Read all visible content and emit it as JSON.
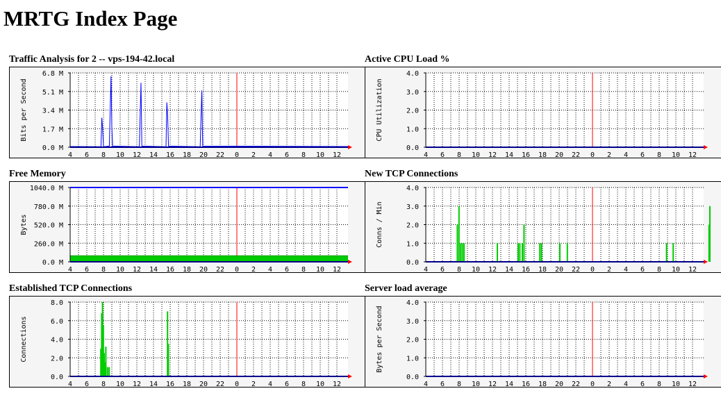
{
  "page": {
    "title": "MRTG Index Page"
  },
  "x_tick_labels": [
    "4",
    "6",
    "8",
    "10",
    "12",
    "14",
    "16",
    "18",
    "20",
    "22",
    "0",
    "2",
    "4",
    "6",
    "8",
    "10",
    "12"
  ],
  "colors": {
    "background": "#f5f5f5",
    "frame": "#000000",
    "axis": "#00008b",
    "in_series": "#00cc00",
    "out_series": "#0000ff",
    "now_line": "#ff0000",
    "grid": "#000000"
  },
  "graphs": [
    {
      "id": "traffic",
      "title": "Traffic Analysis for 2 -- vps-194-42.local",
      "ylabel": "Bits per Second",
      "y_tick_labels": [
        "0.0 M",
        "1.7 M",
        "3.4 M",
        "5.1 M",
        "6.8 M"
      ],
      "chart_data": {
        "type": "line",
        "ylim": [
          0,
          6.8
        ],
        "unit": "M",
        "series": [
          {
            "color": "out",
            "points": [
              [
                7.7,
                0.05
              ],
              [
                7.8,
                2.7
              ],
              [
                7.9,
                1.6
              ],
              [
                8.0,
                0.05
              ],
              [
                8.7,
                0.1
              ],
              [
                8.8,
                3.3
              ],
              [
                8.9,
                6.5
              ],
              [
                9.0,
                1.8
              ],
              [
                9.1,
                0.1
              ],
              [
                12.3,
                0.05
              ],
              [
                12.4,
                3.0
              ],
              [
                12.5,
                5.9
              ],
              [
                12.6,
                0.1
              ],
              [
                15.5,
                0.05
              ],
              [
                15.6,
                4.1
              ],
              [
                15.7,
                2.8
              ],
              [
                15.8,
                0.1
              ],
              [
                19.6,
                0.05
              ],
              [
                19.7,
                2.7
              ],
              [
                19.8,
                5.2
              ],
              [
                19.9,
                0.1
              ]
            ]
          }
        ]
      }
    },
    {
      "id": "cpu",
      "title": "Active CPU Load %",
      "ylabel": "CPU Utilization",
      "y_tick_labels": [
        "0.0",
        "1.0",
        "2.0",
        "3.0",
        "4.0"
      ],
      "chart_data": {
        "type": "line",
        "ylim": [
          0,
          4.0
        ],
        "series": []
      }
    },
    {
      "id": "memory",
      "title": "Free Memory",
      "ylabel": "Bytes",
      "y_tick_labels": [
        "0.0 M",
        "260.0 M",
        "520.0 M",
        "780.0 M",
        "1040.0 M"
      ],
      "chart_data": {
        "type": "area",
        "ylim": [
          0,
          1040
        ],
        "unit": "M",
        "fill_level": 85,
        "max_line": 1040
      }
    },
    {
      "id": "tcp-new",
      "title": "New TCP Connections",
      "ylabel": "Conns / Min",
      "y_tick_labels": [
        "0.0",
        "1.0",
        "2.0",
        "3.0",
        "4.0"
      ],
      "chart_data": {
        "type": "bar",
        "ylim": [
          0,
          4.0
        ],
        "bars": [
          [
            7.7,
            2.0
          ],
          [
            7.9,
            3.0
          ],
          [
            8.1,
            1.0
          ],
          [
            8.3,
            1.0
          ],
          [
            8.5,
            1.0
          ],
          [
            12.5,
            1.0
          ],
          [
            15.0,
            1.0
          ],
          [
            15.2,
            1.0
          ],
          [
            15.5,
            1.0
          ],
          [
            15.7,
            2.0
          ],
          [
            17.6,
            1.0
          ],
          [
            17.8,
            1.0
          ],
          [
            20.0,
            1.0
          ],
          [
            20.9,
            1.0
          ],
          [
            32.8,
            1.0
          ],
          [
            33.6,
            1.0
          ],
          [
            37.9,
            2.0
          ],
          [
            38.0,
            3.0
          ]
        ]
      }
    },
    {
      "id": "tcp-established",
      "title": "Established TCP Connections",
      "ylabel": "Connections",
      "y_tick_labels": [
        "0.0",
        "2.0",
        "4.0",
        "6.0",
        "8.0"
      ],
      "chart_data": {
        "type": "bar",
        "ylim": [
          0,
          8.0
        ],
        "bars": [
          [
            7.6,
            3.0
          ],
          [
            7.7,
            6.8
          ],
          [
            7.8,
            8.0
          ],
          [
            7.9,
            5.5
          ],
          [
            8.0,
            2.5
          ],
          [
            8.1,
            1.5
          ],
          [
            8.2,
            3.2
          ],
          [
            8.4,
            1.0
          ],
          [
            8.6,
            1.0
          ],
          [
            15.6,
            7.0
          ],
          [
            15.7,
            3.5
          ]
        ]
      }
    },
    {
      "id": "load",
      "title": "Server load average",
      "ylabel": "Bytes per Second",
      "y_tick_labels": [
        "0.0",
        "1.0",
        "2.0",
        "3.0",
        "4.0"
      ],
      "chart_data": {
        "type": "line",
        "ylim": [
          0,
          4.0
        ],
        "series": []
      }
    }
  ]
}
